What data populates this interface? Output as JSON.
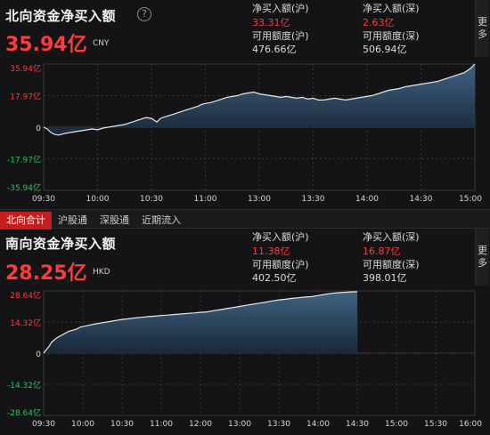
{
  "north": {
    "title": "北向资金净买入额",
    "help_icon": "?",
    "big_value": "35.94亿",
    "currency": "CNY",
    "stats": [
      {
        "label": "净买入额(沪)",
        "value": "33.31亿",
        "color": "red"
      },
      {
        "label": "净买入额(深)",
        "value": "2.63亿",
        "color": "red"
      },
      {
        "label": "可用额度(沪)",
        "value": "476.66亿",
        "color": "white"
      },
      {
        "label": "可用额度(深)",
        "value": "506.94亿",
        "color": "white"
      }
    ],
    "more_label": "更多",
    "chart_data": {
      "type": "area",
      "y_ticks": [
        "35.94亿",
        "17.97亿",
        "0",
        "-17.97亿",
        "-35.94亿"
      ],
      "ylim": [
        -35.94,
        35.94
      ],
      "x_ticks": [
        "09:30",
        "10:00",
        "10:30",
        "11:00",
        "13:00",
        "13:30",
        "14:00",
        "14:30",
        "15:00"
      ],
      "x_time_minutes": [
        0,
        240
      ],
      "series": [
        {
          "values": [
            [
              0,
              0
            ],
            [
              2,
              -1
            ],
            [
              4,
              -3
            ],
            [
              6,
              -4
            ],
            [
              8,
              -4.5
            ],
            [
              10,
              -4
            ],
            [
              12,
              -3.5
            ],
            [
              15,
              -3
            ],
            [
              18,
              -2.5
            ],
            [
              21,
              -2
            ],
            [
              24,
              -1.5
            ],
            [
              27,
              -1
            ],
            [
              30,
              -1.5
            ],
            [
              33,
              -0.5
            ],
            [
              36,
              0
            ],
            [
              39,
              0.5
            ],
            [
              42,
              1
            ],
            [
              45,
              1.5
            ],
            [
              48,
              2.5
            ],
            [
              51,
              3.5
            ],
            [
              54,
              4.5
            ],
            [
              57,
              5.5
            ],
            [
              60,
              5
            ],
            [
              63,
              3
            ],
            [
              65,
              5
            ],
            [
              68,
              6
            ],
            [
              71,
              7
            ],
            [
              74,
              8
            ],
            [
              77,
              9
            ],
            [
              80,
              10
            ],
            [
              83,
              11
            ],
            [
              86,
              12
            ],
            [
              88,
              13
            ],
            [
              90,
              13.5
            ],
            [
              93,
              14
            ],
            [
              96,
              15
            ],
            [
              99,
              16
            ],
            [
              102,
              17
            ],
            [
              105,
              17.5
            ],
            [
              108,
              18
            ],
            [
              111,
              19
            ],
            [
              114,
              19.5
            ],
            [
              117,
              20
            ],
            [
              120,
              19
            ],
            [
              123,
              18.5
            ],
            [
              126,
              18
            ],
            [
              129,
              17.5
            ],
            [
              132,
              17
            ],
            [
              135,
              17.5
            ],
            [
              138,
              17
            ],
            [
              141,
              16.5
            ],
            [
              144,
              17
            ],
            [
              147,
              16
            ],
            [
              150,
              16.5
            ],
            [
              153,
              15.5
            ],
            [
              156,
              15.5
            ],
            [
              159,
              16
            ],
            [
              162,
              16.5
            ],
            [
              165,
              16
            ],
            [
              168,
              15.5
            ],
            [
              171,
              16
            ],
            [
              174,
              16.5
            ],
            [
              177,
              17
            ],
            [
              180,
              17.5
            ],
            [
              183,
              18
            ],
            [
              186,
              19
            ],
            [
              189,
              20
            ],
            [
              192,
              21
            ],
            [
              195,
              21.5
            ],
            [
              198,
              22
            ],
            [
              201,
              23
            ],
            [
              204,
              23.5
            ],
            [
              207,
              24
            ],
            [
              210,
              24.5
            ],
            [
              213,
              25
            ],
            [
              216,
              25.5
            ],
            [
              219,
              26
            ],
            [
              222,
              27
            ],
            [
              225,
              28
            ],
            [
              228,
              29
            ],
            [
              231,
              30
            ],
            [
              234,
              31
            ],
            [
              237,
              33
            ],
            [
              240,
              35.94
            ]
          ]
        }
      ]
    }
  },
  "tabs": [
    {
      "label": "北向合计",
      "active": true
    },
    {
      "label": "沪股通",
      "active": false
    },
    {
      "label": "深股通",
      "active": false
    },
    {
      "label": "近期流入",
      "active": false
    }
  ],
  "south": {
    "title": "南向资金净买入额",
    "big_value": "28.25亿",
    "currency": "HKD",
    "stats": [
      {
        "label": "净买入额(沪)",
        "value": "11.38亿",
        "color": "red"
      },
      {
        "label": "净买入额(深)",
        "value": "16.87亿",
        "color": "red"
      },
      {
        "label": "可用额度(沪)",
        "value": "402.50亿",
        "color": "white"
      },
      {
        "label": "可用额度(深)",
        "value": "398.01亿",
        "color": "white"
      }
    ],
    "more_label": "更多",
    "chart_data": {
      "type": "area",
      "y_ticks": [
        "28.64亿",
        "14.32亿",
        "0",
        "-14.32亿",
        "-28.64亿"
      ],
      "ylim": [
        -28.64,
        28.64
      ],
      "x_ticks": [
        "09:30",
        "10:00",
        "10:30",
        "11:00",
        "12:00",
        "13:00",
        "13:30",
        "14:00",
        "14:30",
        "15:00",
        "15:30",
        "16:00"
      ],
      "x_time_minutes": [
        0,
        330
      ],
      "series": [
        {
          "values": [
            [
              0,
              0
            ],
            [
              2,
              1.5
            ],
            [
              4,
              3
            ],
            [
              6,
              5
            ],
            [
              8,
              6
            ],
            [
              10,
              7
            ],
            [
              13,
              8
            ],
            [
              16,
              9
            ],
            [
              19,
              10
            ],
            [
              22,
              10.5
            ],
            [
              25,
              11
            ],
            [
              28,
              12
            ],
            [
              32,
              12.5
            ],
            [
              36,
              13
            ],
            [
              40,
              13.5
            ],
            [
              45,
              14
            ],
            [
              50,
              14.5
            ],
            [
              55,
              15
            ],
            [
              60,
              15.5
            ],
            [
              65,
              15.8
            ],
            [
              70,
              16.2
            ],
            [
              75,
              16.5
            ],
            [
              80,
              16.8
            ],
            [
              85,
              17
            ],
            [
              90,
              17.3
            ],
            [
              95,
              17.5
            ],
            [
              100,
              17.8
            ],
            [
              105,
              18
            ],
            [
              110,
              18.3
            ],
            [
              115,
              18.5
            ],
            [
              120,
              18.8
            ],
            [
              125,
              19
            ],
            [
              130,
              19.5
            ],
            [
              135,
              20
            ],
            [
              140,
              20.5
            ],
            [
              145,
              21
            ],
            [
              150,
              21.5
            ],
            [
              155,
              22
            ],
            [
              160,
              22.5
            ],
            [
              165,
              23
            ],
            [
              170,
              23.5
            ],
            [
              175,
              24
            ],
            [
              180,
              24.5
            ],
            [
              185,
              24.8
            ],
            [
              190,
              25.2
            ],
            [
              195,
              25.5
            ],
            [
              200,
              25.8
            ],
            [
              205,
              26
            ],
            [
              210,
              26.5
            ],
            [
              215,
              27
            ],
            [
              220,
              27.5
            ],
            [
              225,
              27.8
            ],
            [
              230,
              28
            ],
            [
              235,
              28.2
            ],
            [
              240,
              28.25
            ]
          ]
        }
      ]
    }
  },
  "colors": {
    "background": "#141416",
    "positive": "#ff3b3b",
    "negative": "#2fc25b",
    "line": "#e8e8e8",
    "area_top": "#3f6283",
    "area_bottom": "#1a2838",
    "tab_active": "#c41e1e"
  }
}
